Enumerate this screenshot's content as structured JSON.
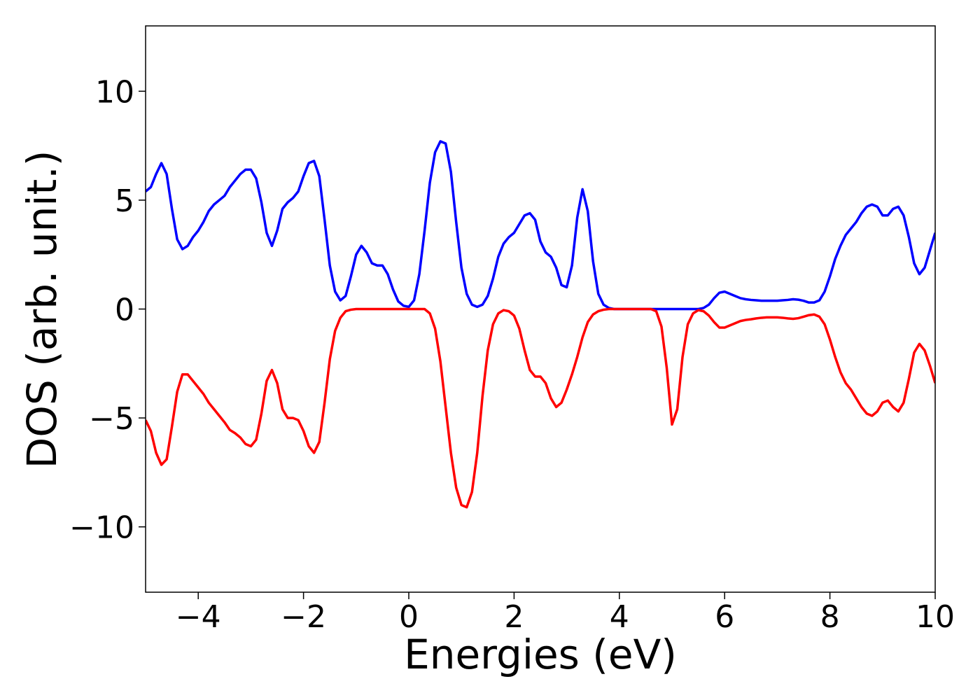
{
  "chart_data": {
    "type": "line",
    "xlabel": "Energies (eV)",
    "ylabel": "DOS (arb. unit.)",
    "x": [
      -5,
      -4.9,
      -4.8,
      -4.7,
      -4.6,
      -4.5,
      -4.4,
      -4.3,
      -4.2,
      -4.1,
      -4,
      -3.9,
      -3.8,
      -3.7,
      -3.6,
      -3.5,
      -3.4,
      -3.3,
      -3.2,
      -3.1,
      -3,
      -2.9,
      -2.8,
      -2.7,
      -2.6,
      -2.5,
      -2.4,
      -2.3,
      -2.2,
      -2.1,
      -2,
      -1.9,
      -1.8,
      -1.7,
      -1.6,
      -1.5,
      -1.4,
      -1.3,
      -1.2,
      -1.1,
      -1,
      -0.9,
      -0.8,
      -0.7,
      -0.6,
      -0.5,
      -0.4,
      -0.3,
      -0.2,
      -0.1,
      0,
      0.1,
      0.2,
      0.3,
      0.4,
      0.5,
      0.6,
      0.7,
      0.8,
      0.9,
      1,
      1.1,
      1.2,
      1.3,
      1.4,
      1.5,
      1.6,
      1.7,
      1.8,
      1.9,
      2,
      2.1,
      2.2,
      2.3,
      2.4,
      2.5,
      2.6,
      2.7,
      2.8,
      2.9,
      3,
      3.1,
      3.2,
      3.3,
      3.4,
      3.5,
      3.6,
      3.7,
      3.8,
      3.9,
      4,
      4.1,
      4.2,
      4.3,
      4.4,
      4.5,
      4.6,
      4.7,
      4.8,
      4.9,
      5,
      5.1,
      5.2,
      5.3,
      5.4,
      5.5,
      5.6,
      5.7,
      5.8,
      5.9,
      6,
      6.1,
      6.2,
      6.3,
      6.4,
      6.5,
      6.6,
      6.7,
      6.8,
      6.9,
      7,
      7.1,
      7.2,
      7.3,
      7.4,
      7.5,
      7.6,
      7.7,
      7.8,
      7.9,
      8,
      8.1,
      8.2,
      8.3,
      8.4,
      8.5,
      8.6,
      8.7,
      8.8,
      8.9,
      9,
      9.1,
      9.2,
      9.3,
      9.4,
      9.5,
      9.6,
      9.7,
      9.8,
      9.9,
      10
    ],
    "series": [
      {
        "color": "#0000ff",
        "values": [
          5.4,
          5.6,
          6.2,
          6.7,
          6.2,
          4.6,
          3.2,
          2.75,
          2.9,
          3.3,
          3.6,
          4.0,
          4.5,
          4.8,
          5.0,
          5.2,
          5.6,
          5.9,
          6.2,
          6.4,
          6.4,
          6.0,
          4.9,
          3.5,
          2.9,
          3.6,
          4.6,
          4.9,
          5.1,
          5.4,
          6.1,
          6.7,
          6.8,
          6.1,
          4.1,
          2.0,
          0.8,
          0.4,
          0.6,
          1.5,
          2.5,
          2.9,
          2.6,
          2.1,
          2.0,
          2.0,
          1.6,
          0.9,
          0.35,
          0.15,
          0.1,
          0.4,
          1.6,
          3.6,
          5.8,
          7.2,
          7.7,
          7.6,
          6.3,
          4.0,
          1.9,
          0.7,
          0.2,
          0.1,
          0.2,
          0.6,
          1.4,
          2.4,
          3.0,
          3.3,
          3.5,
          3.9,
          4.3,
          4.4,
          4.1,
          3.1,
          2.6,
          2.4,
          1.9,
          1.1,
          1.0,
          2.0,
          4.2,
          5.5,
          4.5,
          2.2,
          0.7,
          0.2,
          0.05,
          0,
          0,
          0,
          0,
          0,
          0,
          0,
          0,
          0,
          0,
          0,
          0,
          0,
          0,
          0,
          0,
          0,
          0.05,
          0.2,
          0.5,
          0.75,
          0.8,
          0.7,
          0.6,
          0.5,
          0.45,
          0.42,
          0.4,
          0.38,
          0.38,
          0.38,
          0.38,
          0.4,
          0.42,
          0.45,
          0.43,
          0.38,
          0.3,
          0.3,
          0.4,
          0.8,
          1.5,
          2.3,
          2.9,
          3.4,
          3.7,
          4.0,
          4.4,
          4.7,
          4.8,
          4.7,
          4.3,
          4.3,
          4.6,
          4.7,
          4.3,
          3.3,
          2.1,
          1.6,
          1.9,
          2.7,
          3.5
        ]
      },
      {
        "color": "#ff0000",
        "values": [
          -5.1,
          -5.6,
          -6.6,
          -7.15,
          -6.9,
          -5.4,
          -3.8,
          -3.0,
          -3.0,
          -3.3,
          -3.6,
          -3.9,
          -4.3,
          -4.6,
          -4.9,
          -5.2,
          -5.55,
          -5.7,
          -5.9,
          -6.2,
          -6.3,
          -6.0,
          -4.8,
          -3.3,
          -2.8,
          -3.4,
          -4.6,
          -5.0,
          -5.0,
          -5.1,
          -5.6,
          -6.3,
          -6.6,
          -6.1,
          -4.3,
          -2.3,
          -1.0,
          -0.4,
          -0.1,
          -0.03,
          0,
          0,
          0,
          0,
          0,
          0,
          0,
          0,
          0,
          0,
          0,
          0,
          0,
          0,
          -0.2,
          -0.9,
          -2.4,
          -4.5,
          -6.6,
          -8.2,
          -9.0,
          -9.1,
          -8.4,
          -6.6,
          -4.0,
          -1.9,
          -0.7,
          -0.2,
          -0.05,
          -0.1,
          -0.3,
          -0.9,
          -1.9,
          -2.8,
          -3.1,
          -3.1,
          -3.4,
          -4.1,
          -4.5,
          -4.3,
          -3.7,
          -3.0,
          -2.2,
          -1.3,
          -0.6,
          -0.25,
          -0.1,
          -0.03,
          0,
          0,
          0,
          0,
          0,
          0,
          0,
          0,
          0,
          -0.1,
          -0.8,
          -2.7,
          -5.3,
          -4.6,
          -2.2,
          -0.7,
          -0.2,
          -0.05,
          -0.1,
          -0.3,
          -0.6,
          -0.85,
          -0.85,
          -0.75,
          -0.65,
          -0.55,
          -0.5,
          -0.47,
          -0.43,
          -0.4,
          -0.38,
          -0.38,
          -0.38,
          -0.4,
          -0.43,
          -0.45,
          -0.42,
          -0.35,
          -0.28,
          -0.25,
          -0.35,
          -0.7,
          -1.4,
          -2.2,
          -2.9,
          -3.4,
          -3.7,
          -4.1,
          -4.5,
          -4.8,
          -4.9,
          -4.7,
          -4.3,
          -4.2,
          -4.5,
          -4.7,
          -4.3,
          -3.2,
          -2.0,
          -1.6,
          -1.9,
          -2.6,
          -3.4
        ]
      }
    ],
    "xlim": [
      -5,
      10
    ],
    "xticks": [
      {
        "value": -4,
        "label": "−4"
      },
      {
        "value": -2,
        "label": "−2"
      },
      0,
      2,
      4,
      6,
      8,
      10
    ],
    "ylim": [
      -13,
      13
    ],
    "yticks": [
      {
        "value": -10,
        "label": "−10"
      },
      {
        "value": -5,
        "label": "−5"
      },
      0,
      5,
      10
    ],
    "grid": false
  }
}
